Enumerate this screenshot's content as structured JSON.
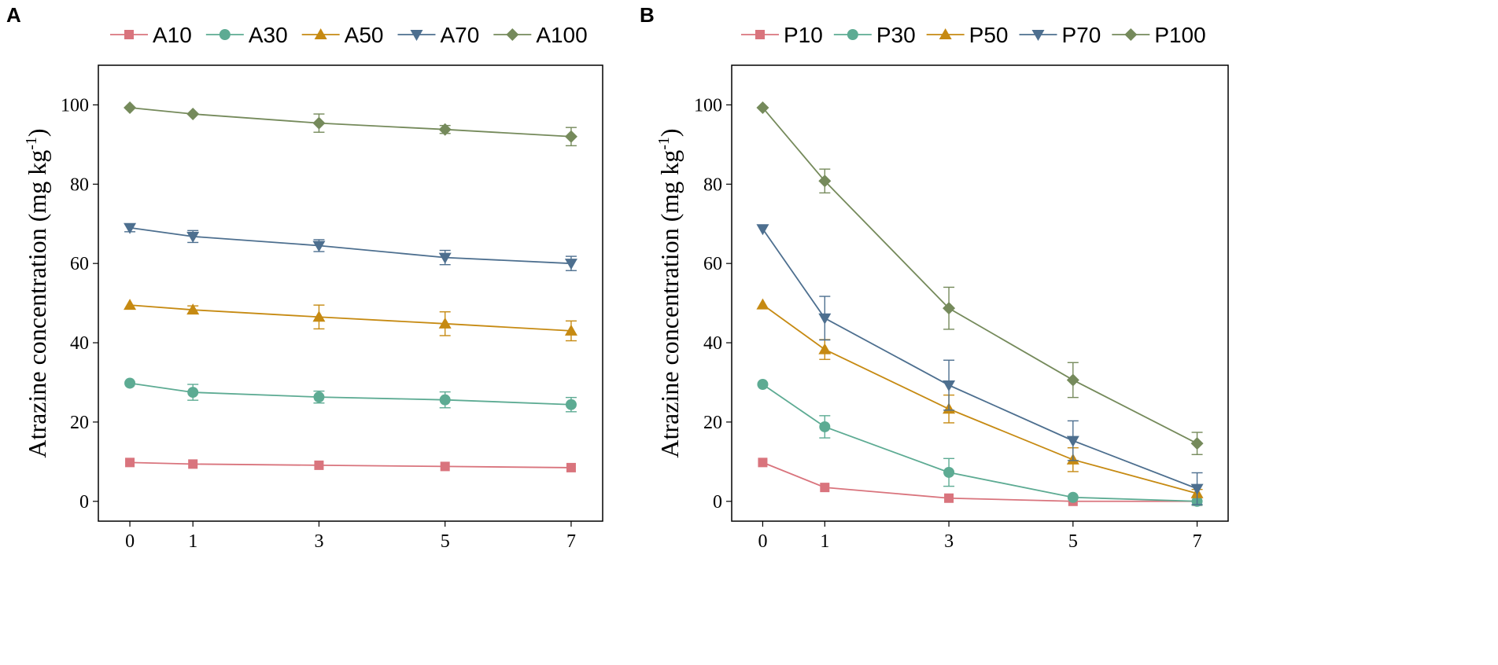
{
  "figure_title": "",
  "colors": {
    "s10": "#d9747d",
    "s30": "#5dab93",
    "s50": "#c68a12",
    "s70": "#4d6f8f",
    "s100": "#758a5b"
  },
  "chart_data": [
    {
      "type": "line",
      "panel_label": "A",
      "ylabel_main": "Atrazine concentration (mg kg",
      "ylabel_sup": "-1",
      "ylabel_close": ")",
      "xlabel": "",
      "x": [
        0,
        1,
        3,
        5,
        7
      ],
      "xticks": [
        "0",
        "1",
        "3",
        "5",
        "7"
      ],
      "yticks": [
        "0",
        "20",
        "40",
        "60",
        "80",
        "100"
      ],
      "ylim": [
        -5,
        110
      ],
      "xlim": [
        -0.5,
        7.5
      ],
      "legend_position": "top",
      "series": [
        {
          "name": "A10",
          "marker": "square",
          "color": "#d9747d",
          "values": [
            9.8,
            9.4,
            9.1,
            8.8,
            8.5
          ],
          "errors": [
            0.4,
            0.4,
            0.4,
            0.4,
            0.4
          ]
        },
        {
          "name": "A30",
          "marker": "circle",
          "color": "#5dab93",
          "values": [
            29.8,
            27.5,
            26.3,
            25.6,
            24.4
          ],
          "errors": [
            0.5,
            2.0,
            1.5,
            2.0,
            1.8
          ]
        },
        {
          "name": "A50",
          "marker": "triangle-up",
          "color": "#c68a12",
          "values": [
            49.5,
            48.3,
            46.5,
            44.8,
            43.0
          ],
          "errors": [
            0.5,
            1.0,
            3.0,
            3.0,
            2.5
          ]
        },
        {
          "name": "A70",
          "marker": "triangle-down",
          "color": "#4d6f8f",
          "values": [
            69.0,
            66.8,
            64.5,
            61.5,
            60.0
          ],
          "errors": [
            1.0,
            1.5,
            1.5,
            1.8,
            1.8
          ]
        },
        {
          "name": "A100",
          "marker": "diamond",
          "color": "#758a5b",
          "values": [
            99.3,
            97.7,
            95.4,
            93.8,
            92.0
          ],
          "errors": [
            0.4,
            0.5,
            2.3,
            1.0,
            2.3
          ]
        }
      ]
    },
    {
      "type": "line",
      "panel_label": "B",
      "ylabel_main": "Atrazine concentration (mg kg",
      "ylabel_sup": "-1",
      "ylabel_close": ")",
      "xlabel": "",
      "x": [
        0,
        1,
        3,
        5,
        7
      ],
      "xticks": [
        "0",
        "1",
        "3",
        "5",
        "7"
      ],
      "yticks": [
        "0",
        "20",
        "40",
        "60",
        "80",
        "100"
      ],
      "ylim": [
        -5,
        110
      ],
      "xlim": [
        -0.5,
        7.5
      ],
      "legend_position": "top",
      "series": [
        {
          "name": "P10",
          "marker": "square",
          "color": "#d9747d",
          "values": [
            9.8,
            3.5,
            0.8,
            0.0,
            0.0
          ],
          "errors": [
            0.4,
            0.5,
            0.4,
            0.3,
            0.3
          ]
        },
        {
          "name": "P30",
          "marker": "circle",
          "color": "#5dab93",
          "values": [
            29.5,
            18.8,
            7.3,
            1.0,
            0.0
          ],
          "errors": [
            0.5,
            2.8,
            3.5,
            0.5,
            1.0
          ]
        },
        {
          "name": "P50",
          "marker": "triangle-up",
          "color": "#c68a12",
          "values": [
            49.6,
            38.3,
            23.3,
            10.5,
            2.0
          ],
          "errors": [
            0.5,
            2.5,
            3.5,
            3.0,
            1.0
          ]
        },
        {
          "name": "P70",
          "marker": "triangle-down",
          "color": "#4d6f8f",
          "values": [
            68.7,
            46.2,
            29.3,
            15.3,
            3.2
          ],
          "errors": [
            0.5,
            5.5,
            6.3,
            5.0,
            4.0
          ]
        },
        {
          "name": "P100",
          "marker": "diamond",
          "color": "#758a5b",
          "values": [
            99.3,
            80.8,
            48.7,
            30.6,
            14.6
          ],
          "errors": [
            0.4,
            3.0,
            5.3,
            4.4,
            2.8
          ]
        }
      ]
    }
  ]
}
